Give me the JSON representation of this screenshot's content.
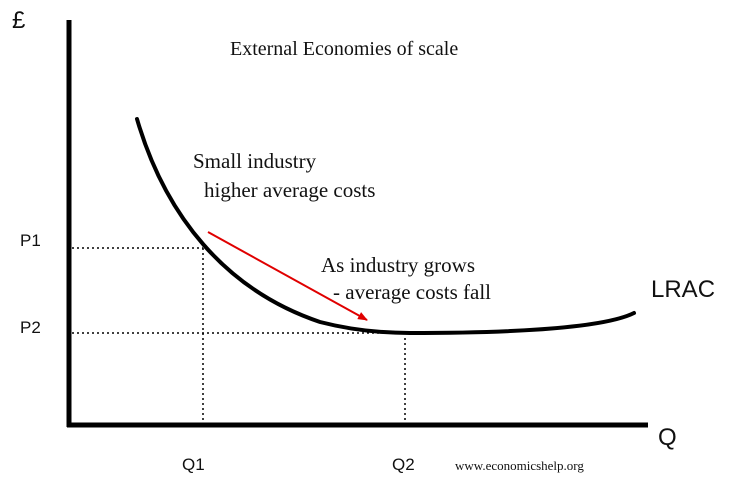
{
  "diagram": {
    "title": "External Economies of scale",
    "y_axis_label": "£",
    "x_axis_label": "Q",
    "curve_label": "LRAC",
    "ticks": {
      "p1": "P1",
      "p2": "P2",
      "q1": "Q1",
      "q2": "Q2"
    },
    "annotation_small": {
      "line1": "Small industry",
      "line2": "higher average costs"
    },
    "annotation_grows": {
      "line1": "As industry grows",
      "line2": "- average costs fall"
    },
    "credit": "www.economicshelp.org",
    "colors": {
      "curve": "#000000",
      "arrow": "#e00000",
      "guides": "#000000"
    }
  }
}
